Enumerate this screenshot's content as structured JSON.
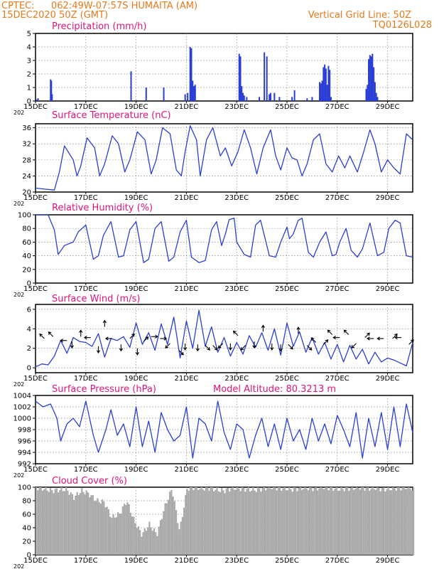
{
  "header": {
    "source": "CPTEC:",
    "location": "062:49W-07:57S  HUMAITA (AM)",
    "init": "15DEC2020 50Z (GMT)",
    "grid_note": "Vertical Grid Line: 50Z",
    "run_code": "TQ0126L028",
    "model_altitude": "Model Altitude: 80.3213 m",
    "year_fragment": "202"
  },
  "colors": {
    "line": "#2a3fd6",
    "bar": "#2a3fd6",
    "cloud": "#aaaaaa",
    "header": "#e87a1a",
    "title": "#e0147a"
  },
  "chart_data": [
    {
      "id": "precip",
      "type": "bar",
      "title": "Precipitation (mm/h)",
      "ylim": [
        0,
        5
      ],
      "yticks": [
        0,
        1,
        2,
        3,
        4,
        5
      ],
      "x_ticks": [
        "15DEC",
        "17DEC",
        "19DEC",
        "21DEC",
        "23DEC",
        "25DEC",
        "27DEC",
        "29DEC"
      ],
      "x_tick_days": [
        0,
        2,
        4,
        6,
        8,
        10,
        12,
        14
      ],
      "x_range_days": [
        0,
        15
      ],
      "x_days": [
        0.05,
        0.1,
        0.6,
        0.63,
        0.66,
        3.8,
        4.4,
        5.1,
        5.95,
        6.05,
        6.15,
        6.2,
        6.25,
        6.3,
        6.35,
        8.1,
        8.15,
        8.2,
        8.25,
        8.3,
        8.4,
        8.9,
        9.1,
        9.2,
        9.3,
        9.35,
        9.5,
        9.7,
        10.2,
        10.3,
        10.8,
        11.0,
        11.3,
        11.35,
        11.4,
        11.45,
        11.5,
        11.55,
        11.6,
        11.65,
        11.7,
        11.75,
        13.15,
        13.2,
        13.25,
        13.3,
        13.35,
        13.4,
        13.45,
        13.5,
        13.55,
        13.6
      ],
      "values": [
        0.1,
        0.2,
        1.6,
        1.5,
        0.5,
        2.2,
        1.0,
        1.0,
        0.5,
        0.6,
        4.0,
        3.9,
        1.5,
        1.1,
        1.2,
        3.5,
        3.3,
        1.1,
        0.6,
        0.4,
        0.3,
        0.3,
        3.6,
        3.3,
        0.5,
        0.6,
        0.6,
        0.3,
        0.3,
        0.8,
        0.2,
        0.3,
        1.4,
        1.3,
        1.5,
        2.5,
        2.7,
        2.4,
        1.2,
        2.6,
        2.3,
        0.3,
        0.9,
        1.2,
        3.1,
        3.4,
        3.3,
        3.5,
        2.5,
        1.4,
        0.6,
        0.3
      ]
    },
    {
      "id": "temp",
      "type": "line",
      "title": "Surface Temperature (nC)",
      "ylim": [
        20,
        37
      ],
      "yticks": [
        20,
        24,
        28,
        32,
        36
      ],
      "x_ticks": [
        "15DEC",
        "17DEC",
        "19DEC",
        "21DEC",
        "23DEC",
        "25DEC",
        "27DEC",
        "29DEC"
      ],
      "x_tick_days": [
        0,
        2,
        4,
        6,
        8,
        10,
        12,
        14
      ],
      "x_range_days": [
        0,
        15
      ],
      "x_days": [
        0,
        0.4,
        0.75,
        0.95,
        1.15,
        1.5,
        1.65,
        1.8,
        2.05,
        2.35,
        2.55,
        2.75,
        3.05,
        3.3,
        3.55,
        3.75,
        4.05,
        4.35,
        4.6,
        4.8,
        5.05,
        5.35,
        5.6,
        5.8,
        5.95,
        6.15,
        6.4,
        6.55,
        6.8,
        7.05,
        7.35,
        7.55,
        7.8,
        8.05,
        8.3,
        8.55,
        8.8,
        9.05,
        9.35,
        9.55,
        9.75,
        10.0,
        10.2,
        10.4,
        10.6,
        10.8,
        11.05,
        11.3,
        11.55,
        11.8,
        12.05,
        12.3,
        12.5,
        12.8,
        13.05,
        13.3,
        13.5,
        13.75,
        14.0,
        14.25,
        14.5,
        14.75,
        15.0
      ],
      "values": [
        21,
        20.7,
        20.5,
        25,
        31.5,
        28,
        24,
        26.5,
        33.5,
        31,
        24,
        27,
        34,
        32,
        25,
        28,
        35,
        33,
        24.5,
        28,
        36,
        34.5,
        25.5,
        24,
        30,
        36.5,
        33,
        24,
        33,
        36,
        29,
        31,
        26.5,
        30,
        35.5,
        31,
        24.5,
        31,
        35.5,
        29,
        25.5,
        31,
        28.5,
        28,
        24,
        27,
        33,
        34.5,
        27,
        25,
        29,
        26,
        29,
        25,
        30,
        35.5,
        32,
        25,
        28,
        26,
        24.5,
        34.5,
        33
      ]
    },
    {
      "id": "rh",
      "type": "line",
      "title": "Relative Humidity (%)",
      "ylim": [
        0,
        100
      ],
      "yticks": [
        0,
        20,
        40,
        60,
        80,
        100
      ],
      "x_ticks": [
        "15DEC",
        "17DEC",
        "19DEC",
        "21DEC",
        "23DEC",
        "25DEC",
        "27DEC",
        "29DEC"
      ],
      "x_tick_days": [
        0,
        2,
        4,
        6,
        8,
        10,
        12,
        14
      ],
      "x_range_days": [
        0,
        15
      ],
      "x_days": [
        0,
        0.5,
        0.75,
        0.9,
        1.15,
        1.5,
        1.7,
        2.0,
        2.3,
        2.5,
        2.7,
        3.0,
        3.3,
        3.5,
        3.75,
        4.0,
        4.3,
        4.5,
        4.75,
        5.0,
        5.3,
        5.5,
        5.75,
        6.0,
        6.2,
        6.5,
        6.75,
        7.0,
        7.2,
        7.4,
        7.55,
        7.7,
        7.9,
        8.0,
        8.3,
        8.55,
        8.75,
        8.95,
        9.3,
        9.55,
        9.75,
        10.0,
        10.1,
        10.25,
        10.45,
        10.6,
        10.85,
        11.05,
        11.3,
        11.55,
        11.8,
        11.95,
        12.1,
        12.35,
        12.55,
        12.8,
        13.0,
        13.3,
        13.6,
        13.85,
        14.05,
        14.3,
        14.5,
        14.75,
        15.0
      ],
      "values": [
        100,
        100,
        78,
        42,
        55,
        60,
        75,
        85,
        35,
        40,
        70,
        90,
        38,
        40,
        78,
        90,
        30,
        35,
        80,
        90,
        32,
        38,
        75,
        92,
        38,
        30,
        33,
        78,
        90,
        55,
        72,
        93,
        95,
        60,
        42,
        38,
        85,
        92,
        40,
        38,
        60,
        82,
        65,
        72,
        92,
        95,
        45,
        38,
        60,
        75,
        40,
        42,
        60,
        80,
        48,
        38,
        50,
        88,
        40,
        45,
        80,
        92,
        88,
        40,
        38
      ]
    },
    {
      "id": "wind",
      "type": "line",
      "title": "Surface Wind (m/s)",
      "ylim": [
        -0.5,
        6.5
      ],
      "yticks": [
        0,
        2,
        4,
        6
      ],
      "x_ticks": [
        "15DEC",
        "17DEC",
        "19DEC",
        "21DEC",
        "23DEC",
        "25DEC",
        "27DEC",
        "29DEC"
      ],
      "x_tick_days": [
        0,
        2,
        4,
        6,
        8,
        10,
        12,
        14
      ],
      "x_range_days": [
        0,
        15
      ],
      "x_days": [
        0,
        0.25,
        0.5,
        0.75,
        1.0,
        1.25,
        1.5,
        1.75,
        2.0,
        2.25,
        2.5,
        2.75,
        3.0,
        3.25,
        3.5,
        3.75,
        4.0,
        4.25,
        4.5,
        4.75,
        5.0,
        5.25,
        5.5,
        5.75,
        6.0,
        6.25,
        6.5,
        6.75,
        7.0,
        7.25,
        7.5,
        7.75,
        8.0,
        8.25,
        8.5,
        8.75,
        9.0,
        9.25,
        9.5,
        9.75,
        10.0,
        10.25,
        10.5,
        10.75,
        11.0,
        11.25,
        11.5,
        11.75,
        12.0,
        12.25,
        12.5,
        12.75,
        13.0,
        13.25,
        13.5,
        13.75,
        14.0,
        14.25,
        14.5,
        14.75,
        15.0
      ],
      "values": [
        0.1,
        0.4,
        0.3,
        1.2,
        2.8,
        1.5,
        3.1,
        2.7,
        2.6,
        2.2,
        3.5,
        1.1,
        3.0,
        2.8,
        3.2,
        2.1,
        4.6,
        2.4,
        3.6,
        1.8,
        4.5,
        2.4,
        5.2,
        1.0,
        4.8,
        2.0,
        5.9,
        2.2,
        4.2,
        1.6,
        3.1,
        1.2,
        2.6,
        1.4,
        3.3,
        2.1,
        3.6,
        1.8,
        4.0,
        1.3,
        4.6,
        2.2,
        3.7,
        1.6,
        3.1,
        1.4,
        2.6,
        0.9,
        2.4,
        0.6,
        2.3,
        0.9,
        1.9,
        0.4,
        1.6,
        0.6,
        1.0,
        0.8,
        0.5,
        0.2,
        2.6
      ]
    },
    {
      "id": "pres",
      "type": "line",
      "title": "Surface Pressure (hPa)",
      "ylim": [
        992,
        1004
      ],
      "yticks": [
        992,
        994,
        996,
        998,
        1000,
        1002,
        1004
      ],
      "x_ticks": [
        "15DEC",
        "17DEC",
        "19DEC",
        "21DEC",
        "23DEC",
        "25DEC",
        "27DEC",
        "29DEC"
      ],
      "x_tick_days": [
        0,
        2,
        4,
        6,
        8,
        10,
        12,
        14
      ],
      "x_range_days": [
        0,
        15
      ],
      "x_days": [
        0,
        0.3,
        0.6,
        0.85,
        1.0,
        1.25,
        1.5,
        1.75,
        2.0,
        2.3,
        2.5,
        2.8,
        3.0,
        3.25,
        3.5,
        3.75,
        4.0,
        4.25,
        4.5,
        4.75,
        5.0,
        5.25,
        5.5,
        5.75,
        6.0,
        6.25,
        6.5,
        6.75,
        7.0,
        7.25,
        7.5,
        7.75,
        8.0,
        8.25,
        8.5,
        8.75,
        9.0,
        9.25,
        9.5,
        9.75,
        10.0,
        10.25,
        10.5,
        10.75,
        11.0,
        11.25,
        11.5,
        11.75,
        12.0,
        12.25,
        12.5,
        12.75,
        13.0,
        13.25,
        13.5,
        13.75,
        14.0,
        14.25,
        14.5,
        14.75,
        15.0
      ],
      "values": [
        1003,
        1002,
        1002.5,
        1000,
        996,
        999,
        1000,
        998.5,
        1003,
        997,
        994,
        998,
        1001.5,
        997,
        999,
        995,
        1002,
        995,
        999.5,
        994,
        1001,
        998,
        996,
        997,
        1002,
        993,
        1000,
        999,
        996,
        1003,
        997.5,
        994.5,
        999,
        998,
        993,
        997,
        1000,
        995,
        999,
        994.5,
        1000,
        996,
        998,
        994.5,
        1000,
        996,
        999,
        995.5,
        1000.5,
        998,
        995,
        1001,
        993,
        1000,
        995,
        1001,
        994.5,
        1002,
        995,
        1002.5,
        997.5
      ]
    },
    {
      "id": "cloud",
      "type": "area",
      "title": "Cloud Cover (%)",
      "ylim": [
        0,
        100
      ],
      "yticks": [
        0,
        20,
        40,
        60,
        80,
        100
      ],
      "x_ticks": [
        "15DEC",
        "17DEC",
        "19DEC",
        "21DEC",
        "23DEC",
        "25DEC",
        "27DEC",
        "29DEC"
      ],
      "x_tick_days": [
        0,
        2,
        4,
        6,
        8,
        10,
        12,
        14
      ],
      "x_range_days": [
        0,
        15
      ],
      "x_days": [
        0,
        0.3,
        0.6,
        0.9,
        1.2,
        1.5,
        1.8,
        2.1,
        2.4,
        2.7,
        3.0,
        3.3,
        3.6,
        3.9,
        4.2,
        4.5,
        4.8,
        5.1,
        5.4,
        5.7,
        6.0,
        6.3,
        6.6,
        6.9,
        7.2,
        7.5,
        7.8,
        8.1,
        8.4,
        8.7,
        9.0,
        9.3,
        9.6,
        9.9,
        10.2,
        10.5,
        10.8,
        11.1,
        11.4,
        11.7,
        12.0,
        12.3,
        12.6,
        12.9,
        13.2,
        13.5,
        13.8,
        14.1,
        14.4,
        14.7,
        15.0
      ],
      "values": [
        100,
        98,
        95,
        96,
        97,
        85,
        95,
        90,
        80,
        78,
        55,
        60,
        80,
        50,
        30,
        45,
        30,
        70,
        98,
        35,
        98,
        100,
        98,
        99,
        96,
        95,
        99,
        98,
        97,
        96,
        98,
        100,
        99,
        98,
        97,
        99,
        99,
        98,
        100,
        99,
        97,
        98,
        99,
        100,
        98,
        99,
        97,
        98,
        99,
        100,
        98
      ]
    }
  ],
  "wind_arrows": [
    {
      "day": 0.35,
      "dir": "NW",
      "level": 3.0
    },
    {
      "day": 0.7,
      "dir": "NW",
      "level": 3.2
    },
    {
      "day": 1.25,
      "dir": "W",
      "level": 2.8
    },
    {
      "day": 1.45,
      "dir": "S",
      "level": 2.7
    },
    {
      "day": 1.8,
      "dir": "N",
      "level": 3.2
    },
    {
      "day": 2.2,
      "dir": "W",
      "level": 3.1
    },
    {
      "day": 2.5,
      "dir": "S",
      "level": 2.2
    },
    {
      "day": 2.75,
      "dir": "N",
      "level": 4.2
    },
    {
      "day": 3.05,
      "dir": "W",
      "level": 3.0
    },
    {
      "day": 3.4,
      "dir": "S",
      "level": 2.4
    },
    {
      "day": 3.75,
      "dir": "NE",
      "level": 3.0
    },
    {
      "day": 4.05,
      "dir": "S",
      "level": 2.0
    },
    {
      "day": 4.3,
      "dir": "NE",
      "level": 2.7
    },
    {
      "day": 4.6,
      "dir": "E",
      "level": 3.2
    },
    {
      "day": 4.95,
      "dir": "E",
      "level": 3.0
    },
    {
      "day": 5.35,
      "dir": "SW",
      "level": 2.5
    },
    {
      "day": 5.7,
      "dir": "SE",
      "level": 1.8
    },
    {
      "day": 5.95,
      "dir": "S",
      "level": 2.5
    },
    {
      "day": 6.45,
      "dir": "S",
      "level": 2.4
    },
    {
      "day": 6.75,
      "dir": "SE",
      "level": 2.3
    },
    {
      "day": 7.05,
      "dir": "SE",
      "level": 2.3
    },
    {
      "day": 7.45,
      "dir": "SW",
      "level": 2.5
    },
    {
      "day": 7.75,
      "dir": "S",
      "level": 2.5
    },
    {
      "day": 8.05,
      "dir": "NW",
      "level": 3.3
    },
    {
      "day": 8.35,
      "dir": "SW",
      "level": 2.3
    },
    {
      "day": 8.7,
      "dir": "S",
      "level": 2.7
    },
    {
      "day": 9.05,
      "dir": "N",
      "level": 3.7
    },
    {
      "day": 9.4,
      "dir": "S",
      "level": 2.5
    },
    {
      "day": 9.75,
      "dir": "S",
      "level": 2.4
    },
    {
      "day": 10.05,
      "dir": "SE",
      "level": 2.4
    },
    {
      "day": 10.45,
      "dir": "N",
      "level": 3.5
    },
    {
      "day": 10.8,
      "dir": "SE",
      "level": 2.3
    },
    {
      "day": 11.15,
      "dir": "NW",
      "level": 2.6
    },
    {
      "day": 11.45,
      "dir": "NE",
      "level": 2.4
    },
    {
      "day": 11.8,
      "dir": "NW",
      "level": 3.4
    },
    {
      "day": 12.1,
      "dir": "W",
      "level": 3.1
    },
    {
      "day": 12.45,
      "dir": "NW",
      "level": 3.4
    },
    {
      "day": 12.75,
      "dir": "SW",
      "level": 2.5
    },
    {
      "day": 13.1,
      "dir": "NE",
      "level": 3.1
    },
    {
      "day": 13.45,
      "dir": "W",
      "level": 3.0
    },
    {
      "day": 13.85,
      "dir": "W",
      "level": 3.0
    },
    {
      "day": 14.2,
      "dir": "NE",
      "level": 3.0
    },
    {
      "day": 14.55,
      "dir": "W",
      "level": 3.1
    },
    {
      "day": 14.85,
      "dir": "NE",
      "level": 2.4
    }
  ]
}
